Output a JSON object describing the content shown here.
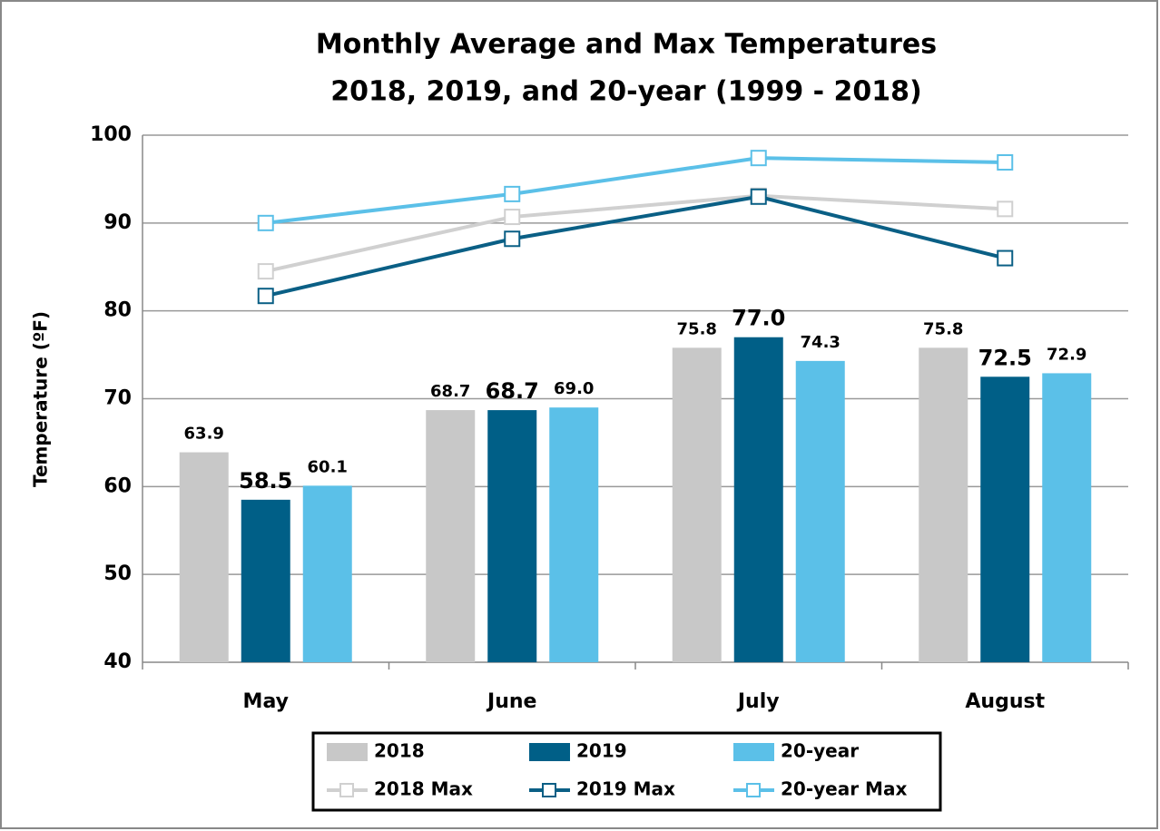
{
  "chart_data": {
    "type": "bar",
    "title": [
      "Monthly Average and Max Temperatures",
      "2018, 2019, and 20-year (1999 - 2018)"
    ],
    "y_label": "Temperature (ºF)",
    "categories": [
      "May",
      "June",
      "July",
      "August"
    ],
    "series": [
      {
        "name": "2018",
        "type": "bar",
        "color": "#c8c8c8",
        "values": [
          63.9,
          68.7,
          75.8,
          75.8
        ],
        "value_labels": [
          "63.9",
          "68.7",
          "75.8",
          "75.8"
        ]
      },
      {
        "name": "2019",
        "type": "bar",
        "color": "#005f87",
        "values": [
          58.5,
          68.7,
          77,
          72.5
        ],
        "value_labels": [
          "58.5",
          "68.7",
          "77.0",
          "72.5"
        ]
      },
      {
        "name": "20-year",
        "type": "bar",
        "color": "#5bc0e8",
        "values": [
          60.1,
          69,
          74.3,
          72.9
        ],
        "value_labels": [
          "60.1",
          "69.0",
          "74.3",
          "72.9"
        ]
      },
      {
        "name": "2018 Max",
        "type": "line",
        "color": "#d0d0d0",
        "values": [
          84.5,
          90.7,
          93.1,
          91.6
        ]
      },
      {
        "name": "2019 Max",
        "type": "line",
        "color": "#0a5f85",
        "values": [
          81.7,
          88.2,
          93,
          86
        ]
      },
      {
        "name": "20-year Max",
        "type": "line",
        "color": "#5bc0e8",
        "values": [
          90,
          93.3,
          97.4,
          96.9
        ]
      }
    ],
    "ylim": [
      40,
      100
    ],
    "yticks": [
      40,
      50,
      60,
      70,
      80,
      90,
      100
    ],
    "grid": true,
    "legend": "bottom"
  }
}
